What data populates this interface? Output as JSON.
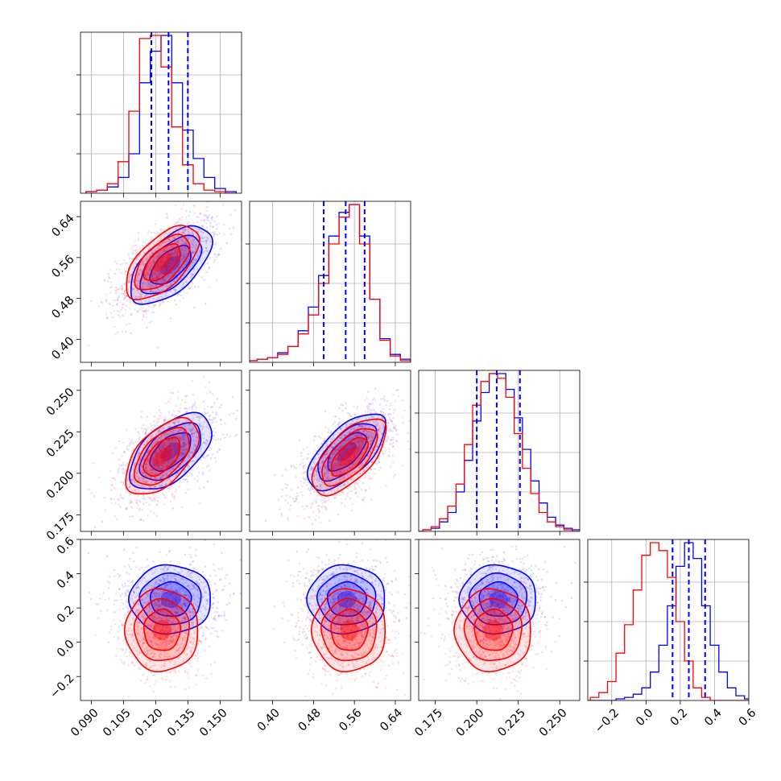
{
  "colors": {
    "series_a": "#0000ff",
    "series_b": "#ff0000",
    "quantile": "#0000ff",
    "grid": "#b0b0b0"
  },
  "chart_data": {
    "type": "corner",
    "n_params": 4,
    "grid": true,
    "series": [
      {
        "color": "#0000ff",
        "means": [
          0.127,
          0.545,
          0.213,
          0.25
        ],
        "stds": [
          0.0095,
          0.038,
          0.0115,
          0.1
        ],
        "correlations": [
          [
            1,
            0.6,
            0.55,
            0.0
          ],
          [
            0.6,
            1,
            0.65,
            0.0
          ],
          [
            0.55,
            0.65,
            1,
            0.0
          ],
          [
            0.0,
            0.0,
            0.0,
            1
          ]
        ],
        "marginals": [
          {
            "x": [
              0.09,
              0.095,
              0.1,
              0.105,
              0.11,
              0.115,
              0.12,
              0.125,
              0.13,
              0.135,
              0.14,
              0.145,
              0.15,
              0.155
            ],
            "y": [
              1,
              2,
              4,
              10,
              25,
              70,
              90,
              100,
              70,
              40,
              22,
              10,
              3,
              1
            ]
          },
          {
            "x": [
              0.36,
              0.38,
              0.4,
              0.42,
              0.44,
              0.46,
              0.48,
              0.5,
              0.52,
              0.54,
              0.56,
              0.58,
              0.6,
              0.62,
              0.64,
              0.66
            ],
            "y": [
              1,
              2,
              3,
              6,
              10,
              20,
              35,
              55,
              80,
              95,
              100,
              80,
              40,
              15,
              5,
              2
            ]
          },
          {
            "x": [
              0.165,
              0.17,
              0.175,
              0.18,
              0.185,
              0.19,
              0.195,
              0.2,
              0.205,
              0.21,
              0.215,
              0.22,
              0.225,
              0.23,
              0.235,
              0.24,
              0.245,
              0.25,
              0.255,
              0.26
            ],
            "y": [
              0,
              1,
              2,
              6,
              12,
              25,
              45,
              70,
              88,
              100,
              100,
              90,
              72,
              52,
              32,
              18,
              9,
              4,
              2,
              1
            ]
          },
          {
            "x": [
              -0.35,
              -0.3,
              -0.25,
              -0.2,
              -0.15,
              -0.1,
              -0.05,
              0.0,
              0.05,
              0.1,
              0.15,
              0.2,
              0.25,
              0.3,
              0.35,
              0.4,
              0.45,
              0.5,
              0.55,
              0.6
            ],
            "y": [
              0,
              0,
              0,
              0,
              1,
              2,
              4,
              8,
              18,
              35,
              60,
              85,
              100,
              90,
              60,
              35,
              18,
              8,
              3,
              1
            ]
          }
        ]
      },
      {
        "color": "#ff0000",
        "means": [
          0.123,
          0.55,
          0.21,
          0.07
        ],
        "stds": [
          0.0085,
          0.036,
          0.0115,
          0.12
        ],
        "correlations": [
          [
            1,
            0.6,
            0.55,
            0.0
          ],
          [
            0.6,
            1,
            0.65,
            0.0
          ],
          [
            0.55,
            0.65,
            1,
            0.0
          ],
          [
            0.0,
            0.0,
            0.0,
            1
          ]
        ],
        "marginals": [
          {
            "x": [
              0.09,
              0.095,
              0.1,
              0.105,
              0.11,
              0.115,
              0.12,
              0.125,
              0.13,
              0.135,
              0.14,
              0.145,
              0.15,
              0.155
            ],
            "y": [
              1,
              2,
              6,
              20,
              52,
              98,
              100,
              80,
              42,
              18,
              6,
              2,
              1,
              0
            ]
          },
          {
            "x": [
              0.36,
              0.38,
              0.4,
              0.42,
              0.44,
              0.46,
              0.48,
              0.5,
              0.52,
              0.54,
              0.56,
              0.58,
              0.6,
              0.62,
              0.64,
              0.66
            ],
            "y": [
              1,
              2,
              3,
              5,
              10,
              18,
              30,
              50,
              75,
              92,
              100,
              75,
              40,
              14,
              4,
              1
            ]
          },
          {
            "x": [
              0.165,
              0.17,
              0.175,
              0.18,
              0.185,
              0.19,
              0.195,
              0.2,
              0.205,
              0.21,
              0.215,
              0.22,
              0.225,
              0.23,
              0.235,
              0.24,
              0.245,
              0.25,
              0.255,
              0.26
            ],
            "y": [
              0,
              1,
              3,
              8,
              16,
              30,
              55,
              80,
              95,
              100,
              97,
              85,
              62,
              40,
              24,
              12,
              6,
              3,
              1,
              0
            ]
          },
          {
            "x": [
              -0.35,
              -0.3,
              -0.25,
              -0.2,
              -0.15,
              -0.1,
              -0.05,
              0.0,
              0.05,
              0.1,
              0.15,
              0.2,
              0.25,
              0.3,
              0.35,
              0.4,
              0.45,
              0.5,
              0.55,
              0.6
            ],
            "y": [
              0,
              2,
              5,
              12,
              30,
              48,
              70,
              92,
              100,
              95,
              78,
              50,
              25,
              8,
              2,
              0,
              0,
              0,
              0,
              0
            ]
          }
        ]
      }
    ],
    "quantiles": [
      [
        0.118,
        0.126,
        0.135
      ],
      [
        0.5,
        0.543,
        0.58
      ],
      [
        0.2,
        0.212,
        0.226
      ],
      [
        0.155,
        0.25,
        0.345
      ]
    ],
    "axes": [
      {
        "range": [
          0.085,
          0.16
        ],
        "ticks": [
          0.09,
          0.105,
          0.12,
          0.135,
          0.15
        ],
        "tick_labels": [
          "0.090",
          "0.105",
          "0.120",
          "0.135",
          "0.150"
        ]
      },
      {
        "range": [
          0.355,
          0.67
        ],
        "ticks": [
          0.4,
          0.48,
          0.56,
          0.64
        ],
        "tick_labels": [
          "0.40",
          "0.48",
          "0.56",
          "0.64"
        ]
      },
      {
        "range": [
          0.165,
          0.262
        ],
        "ticks": [
          0.175,
          0.2,
          0.225,
          0.25
        ],
        "tick_labels": [
          "0.175",
          "0.200",
          "0.225",
          "0.250"
        ]
      },
      {
        "range": [
          -0.34,
          0.6
        ],
        "ticks": [
          -0.2,
          0.0,
          0.2,
          0.4,
          0.6
        ],
        "tick_labels": [
          "−0.2",
          "0.0",
          "0.2",
          "0.4",
          "0.6"
        ]
      }
    ]
  }
}
